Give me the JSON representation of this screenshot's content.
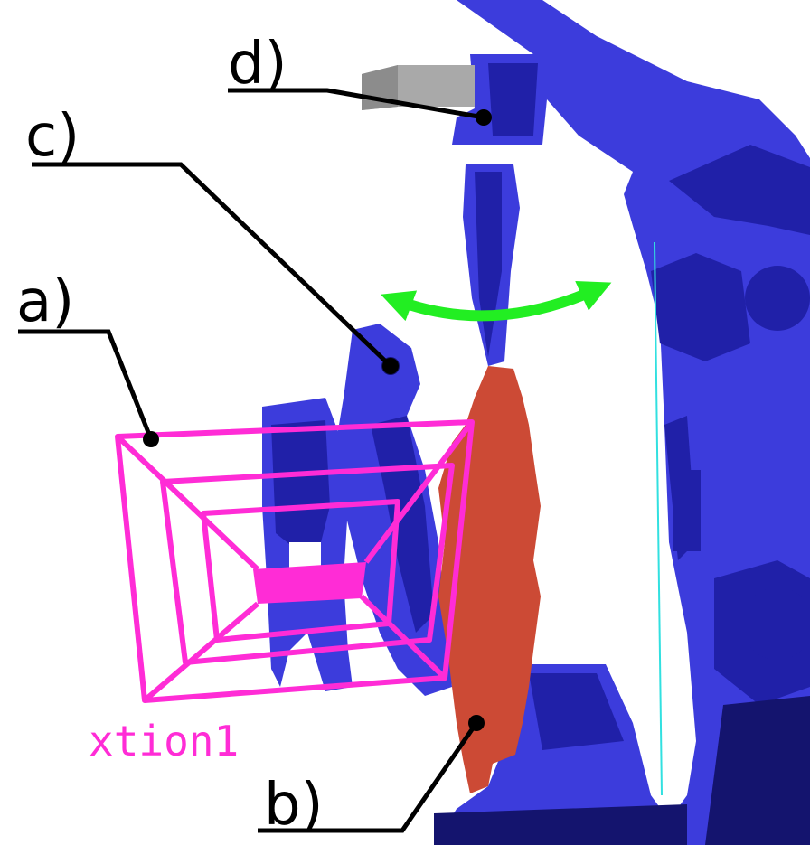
{
  "labels": {
    "a": "a)",
    "b": "b)",
    "c": "c)",
    "d": "d)",
    "camera": "xtion1"
  },
  "colors": {
    "robot": "#3c3cdc",
    "robot_shadow": "#2020a8",
    "robot_dark": "#14146e",
    "camera_frustum": "#ff2cd6",
    "object": "#cc4a35",
    "rotation_arrow": "#22ee22",
    "gripper_tool": "#a9a9a9",
    "leader": "#000000",
    "axis_line": "#31e0e0"
  },
  "icons": {
    "rotation": "curved-double-arrow-icon",
    "camera": "camera-frustum-icon"
  }
}
